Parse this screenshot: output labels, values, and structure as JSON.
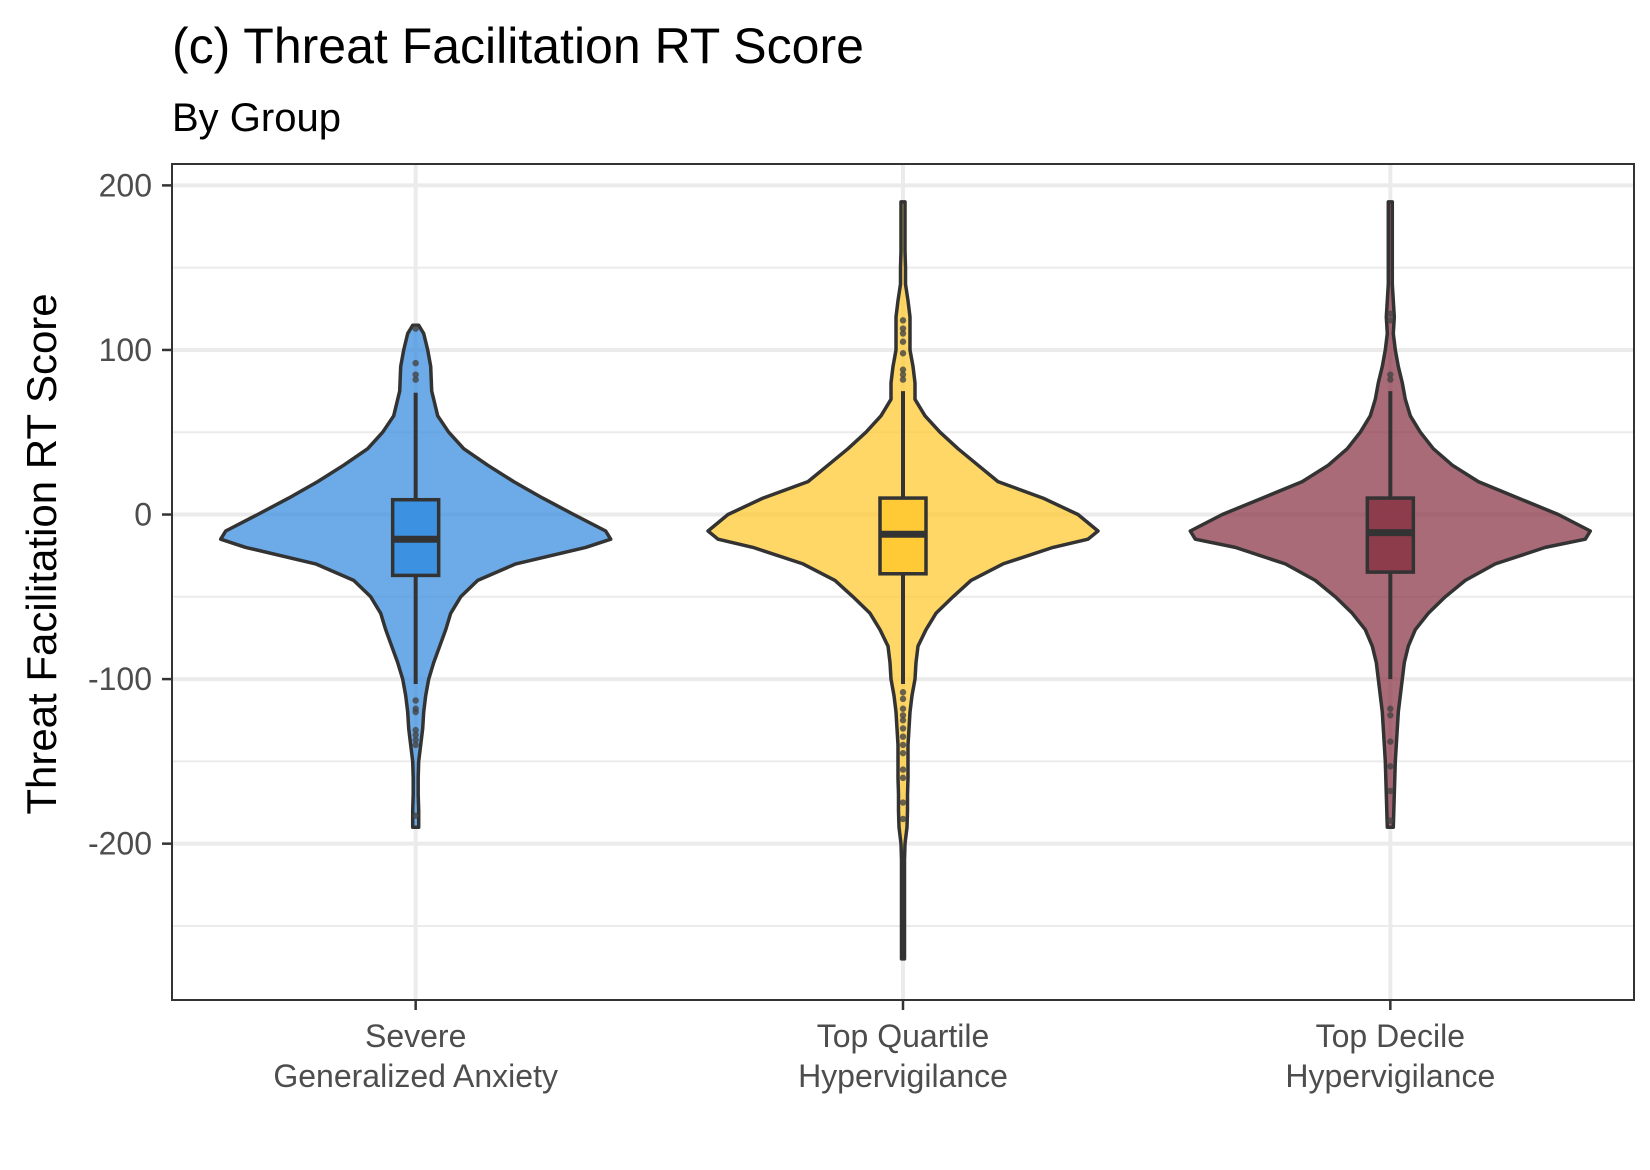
{
  "chart_data": {
    "type": "violin",
    "title": "(c) Threat Facilitation RT Score",
    "subtitle": "By Group",
    "xlabel": "",
    "ylabel": "Threat Facilitation RT Score",
    "ylim": [
      -295,
      213
    ],
    "yticks": [
      200,
      100,
      0,
      -100,
      -200
    ],
    "ytick_labels": [
      "200",
      "100",
      "0",
      "-100",
      "-200"
    ],
    "grid": true,
    "legend": "none",
    "categories": [
      [
        "Severe",
        "Generalized Anxiety"
      ],
      [
        "Top Quartile",
        "Hypervigilance"
      ],
      [
        "Top Decile",
        "Hypervigilance"
      ]
    ],
    "series": [
      {
        "name": "Severe Generalized Anxiety",
        "color": "#3b8fe0",
        "box": {
          "lower_whisker": -103,
          "q1": -37,
          "median": -15,
          "q3": 9,
          "upper_whisker": 74
        },
        "outliers": [
          113,
          92,
          85,
          82,
          -113,
          -118,
          -120,
          -131,
          -134,
          -137,
          -140,
          -183
        ],
        "density": [
          [
            115,
            0.03
          ],
          [
            110,
            0.08
          ],
          [
            100,
            0.12
          ],
          [
            90,
            0.15
          ],
          [
            75,
            0.16
          ],
          [
            60,
            0.22
          ],
          [
            50,
            0.33
          ],
          [
            40,
            0.48
          ],
          [
            30,
            0.72
          ],
          [
            20,
            0.98
          ],
          [
            10,
            1.27
          ],
          [
            0,
            1.58
          ],
          [
            -10,
            1.9
          ],
          [
            -15,
            1.95
          ],
          [
            -20,
            1.7
          ],
          [
            -30,
            1.0
          ],
          [
            -40,
            0.62
          ],
          [
            -50,
            0.45
          ],
          [
            -60,
            0.35
          ],
          [
            -70,
            0.3
          ],
          [
            -80,
            0.24
          ],
          [
            -90,
            0.18
          ],
          [
            -100,
            0.13
          ],
          [
            -110,
            0.1
          ],
          [
            -120,
            0.08
          ],
          [
            -130,
            0.07
          ],
          [
            -140,
            0.05
          ],
          [
            -150,
            0.03
          ],
          [
            -160,
            0.025
          ],
          [
            -170,
            0.025
          ],
          [
            -180,
            0.03
          ],
          [
            -190,
            0.03
          ]
        ]
      },
      {
        "name": "Top Quartile Hypervigilance",
        "color": "#ffc933",
        "box": {
          "lower_whisker": -103,
          "q1": -36,
          "median": -12,
          "q3": 10,
          "upper_whisker": 75
        },
        "outliers": [
          118,
          113,
          110,
          105,
          98,
          88,
          85,
          82,
          -108,
          -112,
          -118,
          -122,
          -125,
          -130,
          -135,
          -140,
          -145,
          -155,
          -160,
          -175,
          -185
        ],
        "density": [
          [
            190,
            0.02
          ],
          [
            180,
            0.02
          ],
          [
            170,
            0.02
          ],
          [
            160,
            0.02
          ],
          [
            150,
            0.025
          ],
          [
            140,
            0.025
          ],
          [
            130,
            0.05
          ],
          [
            120,
            0.07
          ],
          [
            110,
            0.07
          ],
          [
            100,
            0.07
          ],
          [
            90,
            0.1
          ],
          [
            80,
            0.12
          ],
          [
            70,
            0.12
          ],
          [
            60,
            0.22
          ],
          [
            50,
            0.37
          ],
          [
            40,
            0.55
          ],
          [
            30,
            0.75
          ],
          [
            20,
            0.95
          ],
          [
            10,
            1.4
          ],
          [
            0,
            1.75
          ],
          [
            -10,
            1.95
          ],
          [
            -15,
            1.85
          ],
          [
            -20,
            1.5
          ],
          [
            -30,
            1.0
          ],
          [
            -40,
            0.68
          ],
          [
            -50,
            0.5
          ],
          [
            -60,
            0.33
          ],
          [
            -70,
            0.23
          ],
          [
            -80,
            0.15
          ],
          [
            -90,
            0.13
          ],
          [
            -100,
            0.12
          ],
          [
            -110,
            0.09
          ],
          [
            -120,
            0.07
          ],
          [
            -130,
            0.06
          ],
          [
            -140,
            0.05
          ],
          [
            -150,
            0.05
          ],
          [
            -160,
            0.05
          ],
          [
            -170,
            0.045
          ],
          [
            -180,
            0.045
          ],
          [
            -190,
            0.04
          ],
          [
            -200,
            0.02
          ],
          [
            -210,
            0.015
          ],
          [
            -230,
            0.015
          ],
          [
            -250,
            0.015
          ],
          [
            -270,
            0.015
          ]
        ]
      },
      {
        "name": "Top Decile Hypervigilance",
        "color": "#8b3a4a",
        "box": {
          "lower_whisker": -100,
          "q1": -35,
          "median": -11,
          "q3": 10,
          "upper_whisker": 75
        },
        "outliers": [
          122,
          118,
          85,
          82,
          -118,
          -122,
          -138,
          -153,
          -168,
          -186
        ],
        "density": [
          [
            190,
            0.02
          ],
          [
            180,
            0.02
          ],
          [
            170,
            0.02
          ],
          [
            160,
            0.02
          ],
          [
            150,
            0.02
          ],
          [
            140,
            0.02
          ],
          [
            130,
            0.03
          ],
          [
            120,
            0.04
          ],
          [
            110,
            0.03
          ],
          [
            100,
            0.05
          ],
          [
            90,
            0.08
          ],
          [
            80,
            0.12
          ],
          [
            70,
            0.15
          ],
          [
            60,
            0.2
          ],
          [
            50,
            0.3
          ],
          [
            40,
            0.43
          ],
          [
            30,
            0.62
          ],
          [
            20,
            0.88
          ],
          [
            10,
            1.28
          ],
          [
            0,
            1.68
          ],
          [
            -10,
            2.0
          ],
          [
            -15,
            1.95
          ],
          [
            -20,
            1.55
          ],
          [
            -30,
            1.05
          ],
          [
            -40,
            0.75
          ],
          [
            -50,
            0.55
          ],
          [
            -60,
            0.38
          ],
          [
            -70,
            0.25
          ],
          [
            -80,
            0.18
          ],
          [
            -90,
            0.14
          ],
          [
            -100,
            0.12
          ],
          [
            -110,
            0.1
          ],
          [
            -120,
            0.08
          ],
          [
            -130,
            0.07
          ],
          [
            -140,
            0.06
          ],
          [
            -150,
            0.05
          ],
          [
            -160,
            0.045
          ],
          [
            -170,
            0.04
          ],
          [
            -180,
            0.035
          ],
          [
            -190,
            0.03
          ]
        ]
      }
    ]
  }
}
